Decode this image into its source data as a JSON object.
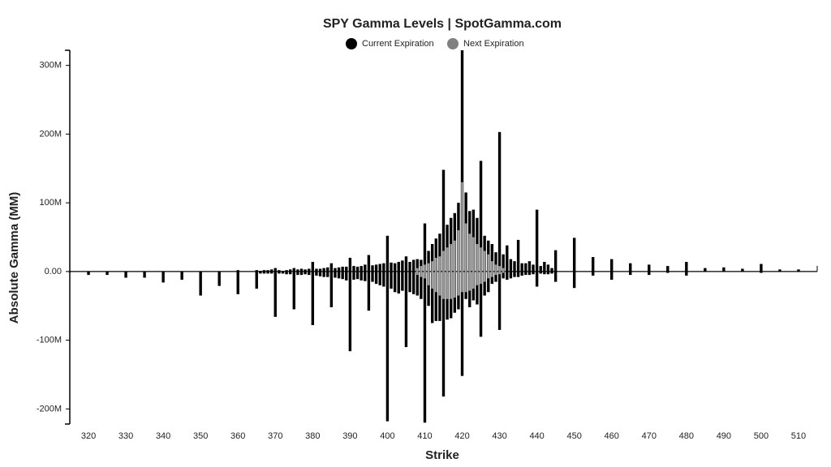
{
  "chart_data": {
    "type": "bar",
    "title": "SPY Gamma Levels | SpotGamma.com",
    "x_label": "Strike",
    "y_label": "Absolute Gamma (MM)",
    "xlim": [
      315,
      515
    ],
    "xticks": [
      320,
      330,
      340,
      350,
      360,
      370,
      380,
      390,
      400,
      410,
      420,
      430,
      440,
      450,
      460,
      470,
      480,
      490,
      500,
      510
    ],
    "ylim": [
      -222,
      322
    ],
    "yticks": [
      {
        "value": -200,
        "label": "-200M"
      },
      {
        "value": -100,
        "label": "-100M"
      },
      {
        "value": 0,
        "label": "0.00"
      },
      {
        "value": 100,
        "label": "100M"
      },
      {
        "value": 200,
        "label": "200M"
      },
      {
        "value": 300,
        "label": "300M"
      }
    ],
    "x": [
      315,
      320,
      325,
      330,
      335,
      340,
      345,
      350,
      355,
      360,
      365,
      366,
      367,
      368,
      369,
      370,
      371,
      372,
      373,
      374,
      375,
      376,
      377,
      378,
      379,
      380,
      381,
      382,
      383,
      384,
      385,
      386,
      387,
      388,
      389,
      390,
      391,
      392,
      393,
      394,
      395,
      396,
      397,
      398,
      399,
      400,
      401,
      402,
      403,
      404,
      405,
      406,
      407,
      408,
      409,
      410,
      411,
      412,
      413,
      414,
      415,
      416,
      417,
      418,
      419,
      420,
      421,
      422,
      423,
      424,
      425,
      426,
      427,
      428,
      429,
      430,
      431,
      432,
      433,
      434,
      435,
      436,
      437,
      438,
      439,
      440,
      441,
      442,
      443,
      444,
      445,
      450,
      455,
      460,
      465,
      470,
      475,
      480,
      485,
      490,
      495,
      500,
      505,
      510
    ],
    "series": [
      {
        "name": "Current Expiration",
        "color": "#000000",
        "values": [
          0,
          0,
          0,
          0,
          0,
          0,
          0,
          0,
          0,
          2,
          2,
          1,
          2,
          2,
          3,
          5,
          2,
          1,
          2,
          3,
          5,
          3,
          4,
          3,
          4,
          14,
          4,
          4,
          5,
          6,
          12,
          5,
          6,
          7,
          7,
          20,
          8,
          7,
          8,
          10,
          24,
          9,
          10,
          11,
          12,
          52,
          13,
          12,
          14,
          16,
          22,
          14,
          17,
          18,
          17,
          70,
          30,
          40,
          48,
          55,
          148,
          68,
          78,
          85,
          100,
          322,
          115,
          88,
          90,
          78,
          161,
          52,
          45,
          40,
          28,
          203,
          25,
          38,
          18,
          15,
          46,
          12,
          12,
          15,
          10,
          90,
          8,
          14,
          10,
          5,
          31,
          49,
          21,
          18,
          12,
          10,
          8,
          14,
          5,
          6,
          4,
          11,
          3,
          3
        ],
        "negative_values": [
          -1,
          -5,
          -5,
          -9,
          -9,
          -16,
          -12,
          -35,
          -21,
          -33,
          -25,
          -3,
          -3,
          -3,
          -3,
          -66,
          -3,
          -3,
          -4,
          -4,
          -55,
          -5,
          -5,
          -4,
          -5,
          -78,
          -6,
          -7,
          -8,
          -8,
          -52,
          -9,
          -10,
          -11,
          -13,
          -116,
          -12,
          -11,
          -13,
          -14,
          -57,
          -15,
          -18,
          -20,
          -22,
          -218,
          -25,
          -30,
          -32,
          -28,
          -110,
          -30,
          -33,
          -35,
          -40,
          -220,
          -50,
          -75,
          -72,
          -72,
          -182,
          -70,
          -68,
          -60,
          -55,
          -152,
          -40,
          -52,
          -42,
          -48,
          -95,
          -35,
          -30,
          -18,
          -15,
          -85,
          -10,
          -12,
          -10,
          -8,
          -8,
          -6,
          -5,
          -5,
          -4,
          -22,
          -3,
          -4,
          -4,
          -3,
          -15,
          -24,
          -6,
          -12,
          -5,
          -5,
          -2,
          -6,
          0,
          0,
          0,
          -2,
          0,
          0
        ]
      },
      {
        "name": "Next Expiration",
        "color": "#9e9e9e",
        "values": [
          0,
          0,
          0,
          0,
          0,
          0,
          0,
          0,
          0,
          0,
          0,
          0,
          0,
          0,
          0,
          0,
          0,
          0,
          0,
          0,
          0,
          0,
          0,
          0,
          0,
          0,
          0,
          0,
          0,
          0,
          0,
          0,
          0,
          0,
          0,
          0,
          0,
          0,
          0,
          0,
          0,
          0,
          0,
          0,
          0,
          0,
          0,
          0,
          0,
          0,
          0,
          0,
          0,
          5,
          8,
          10,
          12,
          15,
          20,
          22,
          30,
          35,
          40,
          45,
          60,
          130,
          70,
          55,
          50,
          40,
          35,
          30,
          25,
          15,
          10,
          8,
          5,
          0,
          0,
          0,
          0,
          0,
          0,
          0,
          0,
          0,
          0,
          0,
          0,
          0,
          0,
          0,
          0,
          0,
          0,
          0,
          0,
          0,
          0,
          0,
          0,
          0,
          0,
          0
        ],
        "negative_values": [
          0,
          0,
          0,
          0,
          0,
          0,
          0,
          0,
          0,
          0,
          0,
          0,
          0,
          0,
          0,
          0,
          0,
          0,
          0,
          0,
          0,
          0,
          0,
          0,
          0,
          0,
          0,
          0,
          0,
          0,
          0,
          0,
          0,
          0,
          0,
          0,
          0,
          0,
          0,
          0,
          0,
          0,
          0,
          0,
          0,
          0,
          0,
          0,
          0,
          0,
          0,
          0,
          0,
          -5,
          -8,
          -10,
          -20,
          -25,
          -30,
          -35,
          -40,
          -40,
          -40,
          -38,
          -35,
          -30,
          -30,
          -28,
          -25,
          -20,
          -18,
          -15,
          -10,
          -8,
          -5,
          -4,
          -2,
          0,
          0,
          0,
          0,
          0,
          0,
          0,
          0,
          0,
          0,
          0,
          0,
          0,
          0,
          0,
          0,
          0,
          0,
          0,
          0,
          0,
          0,
          0,
          0,
          0,
          0,
          0
        ]
      }
    ]
  }
}
